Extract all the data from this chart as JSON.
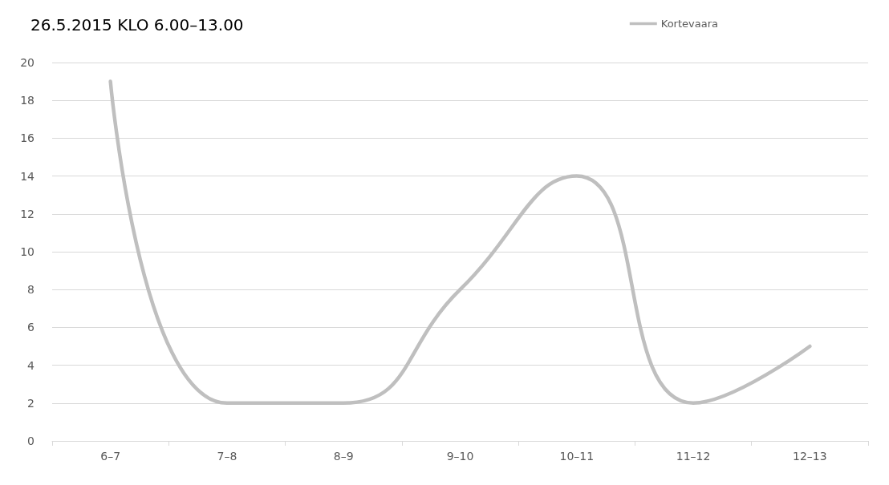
{
  "chart_data": {
    "type": "line",
    "title": "26.5.2015 KLO 6.00–13.00",
    "categories": [
      "6–7",
      "7–8",
      "8–9",
      "9–10",
      "10–11",
      "11–12",
      "12–13"
    ],
    "series": [
      {
        "name": "Kortevaara",
        "color": "#bfbfbf",
        "values": [
          19,
          2,
          2,
          8,
          14,
          2,
          5
        ]
      }
    ],
    "ylim": [
      0,
      20
    ],
    "yticks": [
      0,
      2,
      4,
      6,
      8,
      10,
      12,
      14,
      16,
      18,
      20
    ],
    "grid": "y",
    "legend": "top right"
  }
}
